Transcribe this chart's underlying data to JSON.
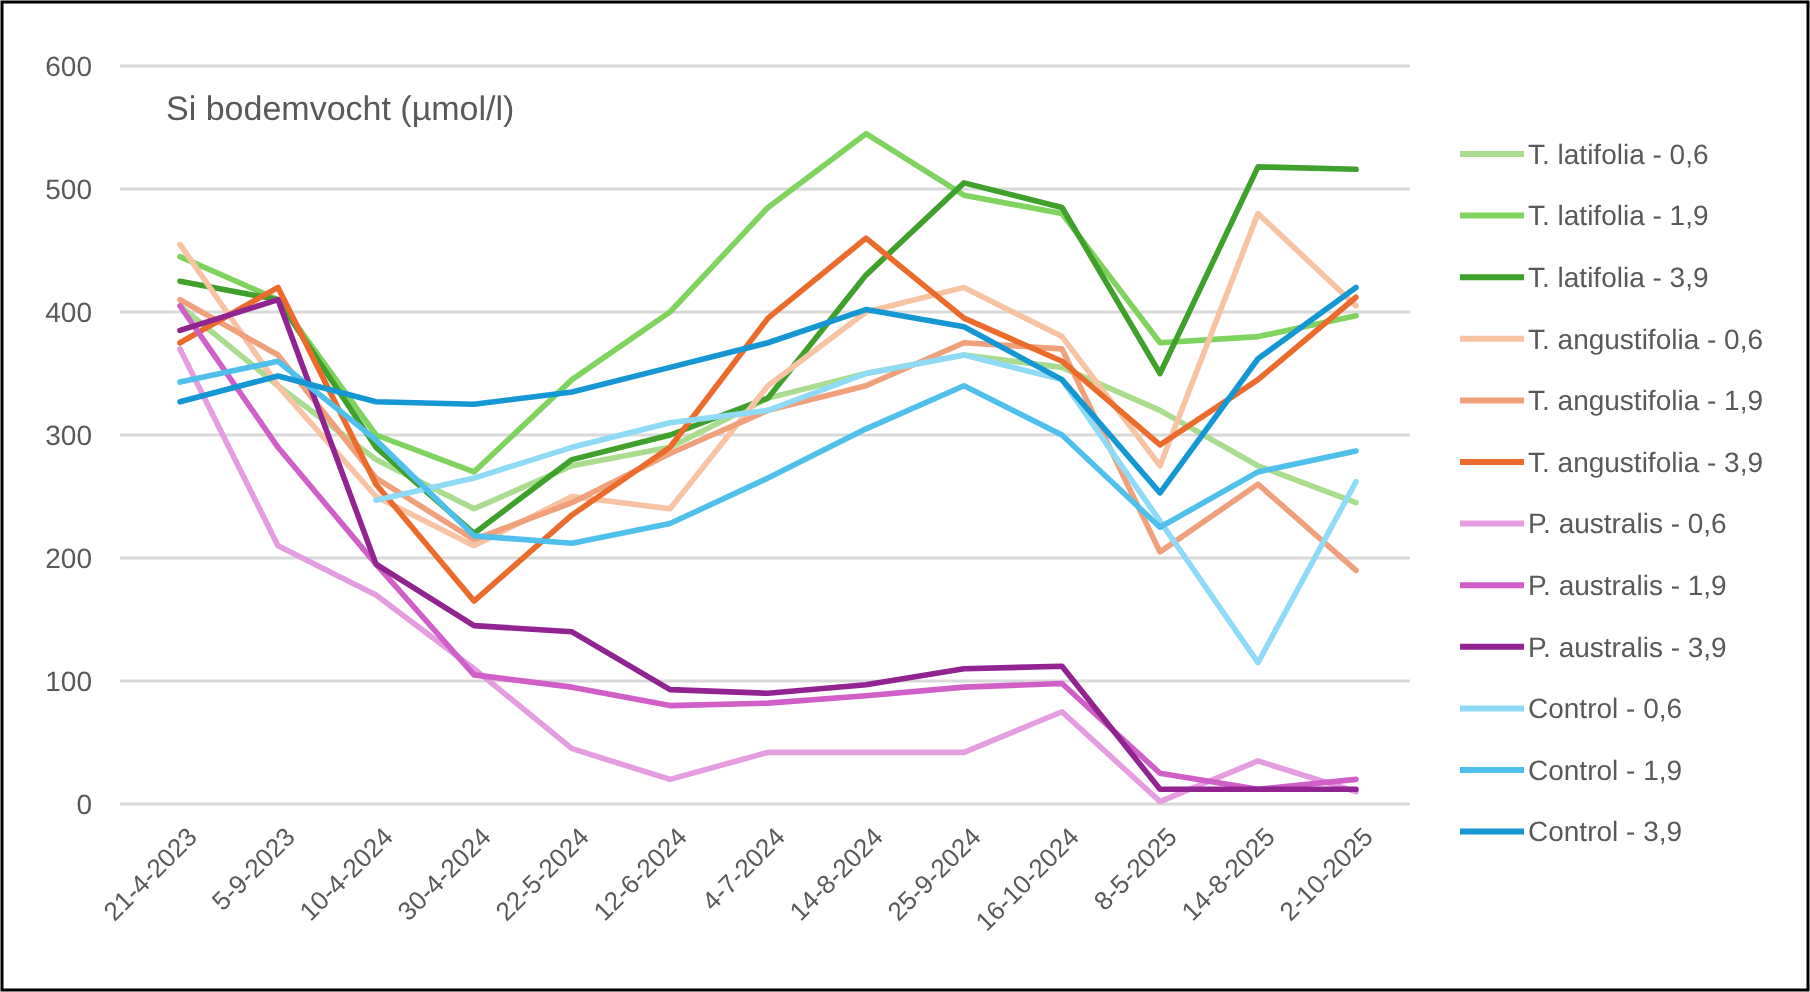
{
  "chart_data": {
    "type": "line",
    "title": "Si bodemvocht (µmol/l)",
    "categories": [
      "21-4-2023",
      "5-9-2023",
      "10-4-2024",
      "30-4-2024",
      "22-5-2024",
      "12-6-2024",
      "4-7-2024",
      "14-8-2024",
      "25-9-2024",
      "16-10-2024",
      "8-5-2025",
      "14-8-2025",
      "2-10-2025"
    ],
    "series": [
      {
        "name": "T. latifolia - 0,6",
        "color": "#a9dc8e",
        "values": [
          405,
          340,
          280,
          240,
          275,
          290,
          330,
          350,
          365,
          355,
          320,
          275,
          245
        ]
      },
      {
        "name": "T. latifolia - 1,9",
        "color": "#7fd35f",
        "values": [
          445,
          410,
          300,
          270,
          345,
          400,
          485,
          545,
          495,
          480,
          375,
          380,
          397
        ]
      },
      {
        "name": "T. latifolia - 3,9",
        "color": "#3fa02c",
        "values": [
          425,
          410,
          290,
          220,
          280,
          300,
          330,
          430,
          505,
          485,
          350,
          518,
          516
        ]
      },
      {
        "name": "T. angustifolia - 0,6",
        "color": "#f7c3a3",
        "values": [
          455,
          340,
          250,
          210,
          250,
          240,
          340,
          400,
          420,
          380,
          275,
          480,
          405
        ]
      },
      {
        "name": "T. angustifolia - 1,9",
        "color": "#f0a07a",
        "values": [
          410,
          365,
          265,
          215,
          245,
          285,
          320,
          340,
          375,
          370,
          205,
          260,
          190
        ]
      },
      {
        "name": "T. angustifolia - 3,9",
        "color": "#ec6a2c",
        "values": [
          375,
          420,
          260,
          165,
          235,
          290,
          395,
          460,
          395,
          360,
          292,
          345,
          412
        ]
      },
      {
        "name": "P. australis - 0,6",
        "color": "#e59ce0",
        "values": [
          370,
          210,
          170,
          110,
          45,
          20,
          42,
          42,
          42,
          75,
          2,
          35,
          10
        ]
      },
      {
        "name": "P. australis - 1,9",
        "color": "#d15fc8",
        "values": [
          405,
          290,
          195,
          105,
          95,
          80,
          82,
          88,
          95,
          98,
          25,
          12,
          20
        ]
      },
      {
        "name": "P. australis - 3,9",
        "color": "#922492",
        "values": [
          385,
          410,
          195,
          145,
          140,
          93,
          90,
          97,
          110,
          112,
          12,
          12,
          12
        ]
      },
      {
        "name": "Control - 0,6",
        "color": "#8fdaf7",
        "values": [
          null,
          null,
          247,
          265,
          290,
          310,
          320,
          350,
          365,
          345,
          230,
          115,
          262
        ]
      },
      {
        "name": "Control - 1,9",
        "color": "#4fbfec",
        "values": [
          343,
          360,
          296,
          218,
          212,
          228,
          265,
          305,
          340,
          300,
          225,
          270,
          287
        ]
      },
      {
        "name": "Control - 3,9",
        "color": "#1597d4",
        "values": [
          327,
          348,
          327,
          325,
          335,
          355,
          375,
          402,
          388,
          345,
          253,
          362,
          420
        ]
      }
    ],
    "ylim": [
      0,
      600
    ],
    "yticks": [
      0,
      100,
      200,
      300,
      400,
      500,
      600
    ],
    "grid": "y",
    "legend": "right",
    "marker": "none",
    "line_style": "solid"
  }
}
